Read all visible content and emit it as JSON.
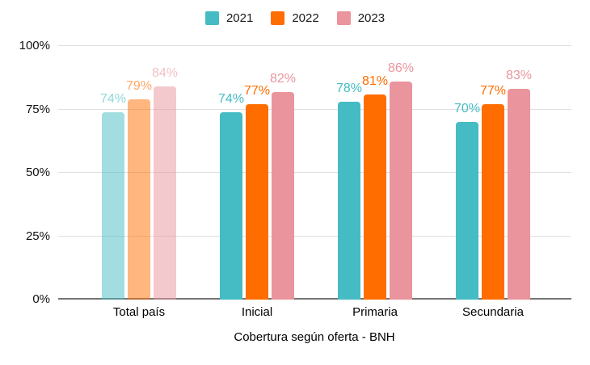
{
  "chart_data": {
    "type": "bar",
    "title": "",
    "xlabel": "Cobertura según oferta - BNH",
    "ylabel": "",
    "ylim": [
      0,
      100
    ],
    "y_ticks": [
      "0%",
      "25%",
      "50%",
      "75%",
      "100%"
    ],
    "grid": true,
    "legend_position": "top",
    "categories": [
      "Total país",
      "Inicial",
      "Primaria",
      "Secundaria"
    ],
    "series": [
      {
        "name": "2021",
        "color": "#45BCC4",
        "values": [
          74,
          74,
          78,
          70
        ]
      },
      {
        "name": "2022",
        "color": "#FF6D00",
        "values": [
          79,
          77,
          81,
          77
        ]
      },
      {
        "name": "2023",
        "color": "#EA949D",
        "values": [
          84,
          82,
          86,
          83
        ]
      }
    ],
    "value_label_suffix": "%",
    "muted_category_index": 0,
    "muted_bar_alpha": 0.5,
    "muted_label_alpha": 0.6,
    "colors": {
      "gridline": "#e0e0e0",
      "baseline": "#757575",
      "axis_text": "#111111"
    }
  }
}
